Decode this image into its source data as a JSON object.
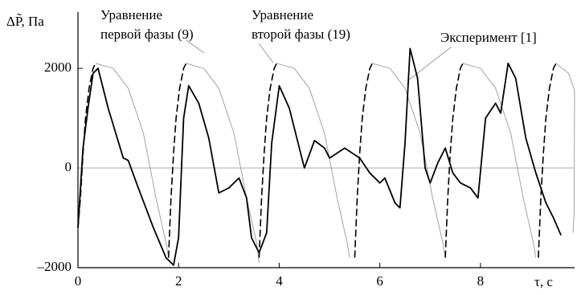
{
  "chart_data": {
    "type": "line",
    "y_label": "ΔP̃, Па",
    "x_label": "τ, с",
    "xlim": [
      0,
      9.87
    ],
    "ylim": [
      -2000,
      3130
    ],
    "xticks": [
      0,
      2,
      4,
      6,
      8
    ],
    "yticks": [
      {
        "value": -2000,
        "label": "–2000"
      },
      0,
      2000
    ],
    "zero_line": true,
    "annotations": [
      {
        "lines": [
          "Уравнение",
          "первой фазы (9)"
        ]
      },
      {
        "lines": [
          "Уравнение",
          "второй фазы (19)"
        ]
      },
      {
        "lines": [
          "Эксперимент [1]"
        ]
      }
    ],
    "series": [
      {
        "color": "#999999",
        "style": "thin",
        "x": [
          0.35,
          0.7,
          1.0,
          1.3,
          1.55,
          1.75,
          1.8,
          2.0,
          2.15,
          2.5,
          2.8,
          3.1,
          3.35,
          3.55,
          3.6,
          3.8,
          3.95,
          4.3,
          4.6,
          4.9,
          5.15,
          5.35,
          5.4,
          5.6,
          5.85,
          6.2,
          6.5,
          6.8,
          7.05,
          7.25,
          7.3,
          7.5,
          7.65,
          8.0,
          8.3,
          8.6,
          8.85,
          9.05,
          9.1,
          9.3,
          9.5,
          9.75,
          9.87,
          9.86,
          9.84
        ],
        "values": [
          2100,
          2000,
          1600,
          700,
          -600,
          -1500,
          -1800,
          null,
          2100,
          2000,
          1600,
          700,
          -600,
          -1500,
          -1900,
          null,
          2100,
          2000,
          1600,
          700,
          -600,
          -1500,
          -1800,
          null,
          2100,
          2000,
          1600,
          700,
          -600,
          -1500,
          -1800,
          null,
          2100,
          2000,
          1600,
          700,
          -600,
          -1500,
          -1800,
          null,
          2100,
          1900,
          1550,
          -900,
          -1300
        ]
      },
      {
        "color": "#000000",
        "style": "dashed",
        "x": [
          0,
          0.05,
          0.1,
          0.15,
          0.22,
          0.3,
          0.35,
          1.0,
          1.8,
          1.85,
          1.9,
          1.95,
          2.02,
          2.1,
          2.15,
          2.5,
          3.6,
          3.65,
          3.7,
          3.75,
          3.82,
          3.9,
          3.95,
          4.5,
          5.5,
          5.55,
          5.6,
          5.65,
          5.72,
          5.8,
          5.85,
          6.5,
          7.3,
          7.35,
          7.4,
          7.45,
          7.52,
          7.6,
          7.65,
          8.5,
          9.15,
          9.2,
          9.25,
          9.3,
          9.37,
          9.45,
          9.5
        ],
        "values": [
          -1200,
          -600,
          300,
          1000,
          1600,
          2000,
          2100,
          null,
          -1800,
          -600,
          300,
          1000,
          1600,
          2000,
          2100,
          null,
          -1800,
          -600,
          300,
          1000,
          1600,
          2000,
          2100,
          null,
          -1800,
          -600,
          300,
          1000,
          1600,
          2000,
          2100,
          null,
          -1800,
          -600,
          300,
          1000,
          1600,
          2000,
          2100,
          null,
          -1800,
          -600,
          300,
          1000,
          1600,
          2000,
          2100
        ]
      },
      {
        "color": "#000000",
        "style": "thick",
        "x": [
          0,
          0.1,
          0.2,
          0.3,
          0.4,
          0.6,
          0.9,
          1.0,
          1.2,
          1.5,
          1.75,
          1.9,
          2.0,
          2.1,
          2.2,
          2.4,
          2.6,
          2.8,
          3.0,
          3.2,
          3.35,
          3.45,
          3.6,
          3.75,
          3.85,
          4.0,
          4.2,
          4.4,
          4.5,
          4.7,
          4.9,
          5.0,
          5.3,
          5.6,
          5.8,
          6.0,
          6.1,
          6.3,
          6.4,
          6.5,
          6.6,
          6.75,
          6.9,
          7.0,
          7.15,
          7.3,
          7.45,
          7.6,
          7.8,
          7.95,
          8.1,
          8.3,
          8.4,
          8.55,
          8.7,
          8.9,
          9.1,
          9.3,
          9.45,
          9.6
        ],
        "values": [
          -1200,
          400,
          1200,
          1900,
          2000,
          1200,
          200,
          150,
          -400,
          -1200,
          -1800,
          -1950,
          -1400,
          1000,
          1650,
          1300,
          600,
          -500,
          -400,
          -200,
          -600,
          -1400,
          -1700,
          -1300,
          500,
          1650,
          1200,
          400,
          0,
          550,
          400,
          200,
          400,
          200,
          -100,
          -300,
          -200,
          -700,
          -800,
          500,
          2400,
          1800,
          0,
          -300,
          100,
          400,
          -100,
          -300,
          -400,
          -600,
          1000,
          1300,
          1100,
          2100,
          1800,
          600,
          -100,
          -700,
          -1000,
          -1350
        ]
      }
    ]
  }
}
